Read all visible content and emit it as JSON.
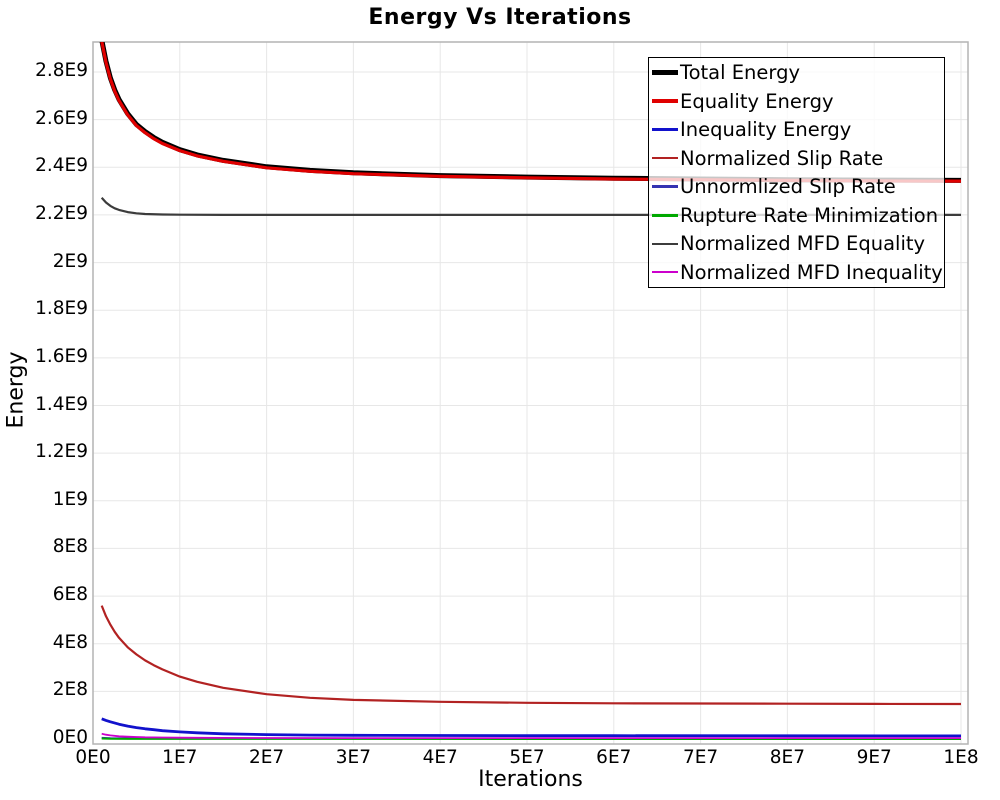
{
  "title": "Energy Vs Iterations",
  "axes": {
    "x": {
      "label": "Iterations",
      "min": 0,
      "max": 100000000.0,
      "ticks": [
        {
          "v": 0,
          "label": "0E0"
        },
        {
          "v": 10000000.0,
          "label": "1E7"
        },
        {
          "v": 20000000.0,
          "label": "2E7"
        },
        {
          "v": 30000000.0,
          "label": "3E7"
        },
        {
          "v": 40000000.0,
          "label": "4E7"
        },
        {
          "v": 50000000.0,
          "label": "5E7"
        },
        {
          "v": 60000000.0,
          "label": "6E7"
        },
        {
          "v": 70000000.0,
          "label": "7E7"
        },
        {
          "v": 80000000.0,
          "label": "8E7"
        },
        {
          "v": 90000000.0,
          "label": "9E7"
        },
        {
          "v": 100000000.0,
          "label": "1E8"
        }
      ]
    },
    "y": {
      "label": "Energy",
      "min": 0,
      "max": 2800000000.0,
      "ticks": [
        {
          "v": 0,
          "label": "0E0"
        },
        {
          "v": 200000000.0,
          "label": "2E8"
        },
        {
          "v": 400000000.0,
          "label": "4E8"
        },
        {
          "v": 600000000.0,
          "label": "6E8"
        },
        {
          "v": 800000000.0,
          "label": "8E8"
        },
        {
          "v": 1000000000.0,
          "label": "1E9"
        },
        {
          "v": 1200000000.0,
          "label": "1.2E9"
        },
        {
          "v": 1400000000.0,
          "label": "1.4E9"
        },
        {
          "v": 1600000000.0,
          "label": "1.6E9"
        },
        {
          "v": 1800000000.0,
          "label": "1.8E9"
        },
        {
          "v": 2000000000.0,
          "label": "2E9"
        },
        {
          "v": 2200000000.0,
          "label": "2.2E9"
        },
        {
          "v": 2400000000.0,
          "label": "2.4E9"
        },
        {
          "v": 2600000000.0,
          "label": "2.6E9"
        },
        {
          "v": 2800000000.0,
          "label": "2.8E9"
        }
      ]
    }
  },
  "legend": {
    "items": [
      {
        "label": "Total Energy",
        "color": "#000000",
        "sample_weight": 5
      },
      {
        "label": "Equality Energy",
        "color": "#e00000",
        "sample_weight": 4
      },
      {
        "label": "Inequality Energy",
        "color": "#1212cc",
        "sample_weight": 3.5
      },
      {
        "label": "Normalized Slip Rate",
        "color": "#b22222",
        "sample_weight": 2.5
      },
      {
        "label": "Unnormlized Slip Rate",
        "color": "#3434b2",
        "sample_weight": 2.5
      },
      {
        "label": "Rupture Rate Minimization",
        "color": "#00a800",
        "sample_weight": 2.5
      },
      {
        "label": "Normalized MFD Equality",
        "color": "#3c3c3c",
        "sample_weight": 2.2
      },
      {
        "label": "Normalized MFD Inequality",
        "color": "#cc00cc",
        "sample_weight": 2.2
      }
    ]
  },
  "chart_data": {
    "type": "line",
    "title": "Energy Vs Iterations",
    "xlabel": "Iterations",
    "ylabel": "Energy",
    "xlim": [
      0,
      100000000.0
    ],
    "ylim": [
      0,
      2800000000.0
    ],
    "grid": true,
    "legend_position": "top-right",
    "series": [
      {
        "name": "Total Energy",
        "color": "#000000",
        "width": 5,
        "x": [
          1000000.0,
          1500000.0,
          2000000.0,
          2500000.0,
          3000000.0,
          4000000.0,
          5000000.0,
          6000000.0,
          7000000.0,
          8000000.0,
          10000000.0,
          12000000.0,
          15000000.0,
          20000000.0,
          25000000.0,
          30000000.0,
          40000000.0,
          50000000.0,
          60000000.0,
          70000000.0,
          80000000.0,
          90000000.0,
          100000000.0
        ],
        "y": [
          2935000000.0,
          2845000000.0,
          2775000000.0,
          2725000000.0,
          2685000000.0,
          2625000000.0,
          2580000000.0,
          2550000000.0,
          2525000000.0,
          2505000000.0,
          2474000000.0,
          2452000000.0,
          2429000000.0,
          2402000000.0,
          2387000000.0,
          2377000000.0,
          2365000000.0,
          2359000000.0,
          2354000000.0,
          2351000000.0,
          2348000000.0,
          2346000000.0,
          2345000000.0
        ]
      },
      {
        "name": "Equality Energy",
        "color": "#e00000",
        "width": 3.2,
        "x": [
          1000000.0,
          1500000.0,
          2000000.0,
          2500000.0,
          3000000.0,
          4000000.0,
          5000000.0,
          6000000.0,
          7000000.0,
          8000000.0,
          10000000.0,
          12000000.0,
          15000000.0,
          20000000.0,
          25000000.0,
          30000000.0,
          40000000.0,
          50000000.0,
          60000000.0,
          70000000.0,
          80000000.0,
          90000000.0,
          100000000.0
        ],
        "y": [
          2930000000.0,
          2840000000.0,
          2770000000.0,
          2720000000.0,
          2680000000.0,
          2620000000.0,
          2575000000.0,
          2545000000.0,
          2520000000.0,
          2500000000.0,
          2470000000.0,
          2448000000.0,
          2425000000.0,
          2398000000.0,
          2383000000.0,
          2373000000.0,
          2362000000.0,
          2356000000.0,
          2351000000.0,
          2348000000.0,
          2345000000.0,
          2343000000.0,
          2342000000.0
        ]
      },
      {
        "name": "Inequality Energy",
        "color": "#1212cc",
        "width": 2.8,
        "x": [
          1000000.0,
          1500000.0,
          2000000.0,
          3000000.0,
          4000000.0,
          5000000.0,
          6000000.0,
          7000000.0,
          8000000.0,
          10000000.0,
          12000000.0,
          15000000.0,
          20000000.0,
          25000000.0,
          30000000.0,
          40000000.0,
          50000000.0,
          60000000.0,
          80000000.0,
          100000000.0
        ],
        "y": [
          85000000.0,
          78000000.0,
          72000000.0,
          62000000.0,
          54000000.0,
          48000000.0,
          43000000.0,
          39000000.0,
          35000000.0,
          30000000.0,
          26000000.0,
          22000000.0,
          18500000.0,
          16500000.0,
          15500000.0,
          14500000.0,
          14000000.0,
          13700000.0,
          13300000.0,
          13000000.0
        ]
      },
      {
        "name": "Normalized Slip Rate",
        "color": "#b22222",
        "width": 2.2,
        "x": [
          1000000.0,
          1500000.0,
          2000000.0,
          2500000.0,
          3000000.0,
          4000000.0,
          5000000.0,
          6000000.0,
          7000000.0,
          8000000.0,
          10000000.0,
          12000000.0,
          15000000.0,
          20000000.0,
          25000000.0,
          30000000.0,
          40000000.0,
          50000000.0,
          60000000.0,
          70000000.0,
          80000000.0,
          90000000.0,
          100000000.0
        ],
        "y": [
          560000000.0,
          515000000.0,
          480000000.0,
          450000000.0,
          425000000.0,
          385000000.0,
          355000000.0,
          330000000.0,
          310000000.0,
          292000000.0,
          262000000.0,
          240000000.0,
          215000000.0,
          188000000.0,
          173000000.0,
          164000000.0,
          156000000.0,
          152000000.0,
          150000000.0,
          149000000.0,
          148000000.0,
          147500000.0,
          147000000.0
        ]
      },
      {
        "name": "Unnormlized Slip Rate",
        "color": "#3434b2",
        "width": 1.8,
        "x": [
          1000000.0,
          2000000.0,
          5000000.0,
          10000000.0,
          20000000.0,
          50000000.0,
          100000000.0
        ],
        "y": [
          5000000.0,
          3500000.0,
          2500000.0,
          2000000.0,
          1800000.0,
          1600000.0,
          1500000.0
        ]
      },
      {
        "name": "Rupture Rate Minimization",
        "color": "#00a800",
        "width": 2,
        "x": [
          1000000.0,
          2000000.0,
          5000000.0,
          10000000.0,
          100000000.0
        ],
        "y": [
          2000000.0,
          1000000.0,
          500000.0,
          300000.0,
          200000.0
        ]
      },
      {
        "name": "Normalized MFD Equality",
        "color": "#3c3c3c",
        "width": 2.2,
        "x": [
          1000000.0,
          1500000.0,
          2000000.0,
          2500000.0,
          3000000.0,
          4000000.0,
          5000000.0,
          6000000.0,
          8000000.0,
          10000000.0,
          15000000.0,
          20000000.0,
          30000000.0,
          50000000.0,
          100000000.0
        ],
        "y": [
          2272000000.0,
          2252000000.0,
          2238000000.0,
          2228000000.0,
          2221000000.0,
          2212000000.0,
          2207000000.0,
          2204000000.0,
          2202000000.0,
          2201000000.0,
          2200000000.0,
          2200000000.0,
          2200000000.0,
          2200000000.0,
          2200000000.0
        ]
      },
      {
        "name": "Normalized MFD Inequality",
        "color": "#cc00cc",
        "width": 1.8,
        "x": [
          1000000.0,
          1500000.0,
          2000000.0,
          3000000.0,
          4000000.0,
          5000000.0,
          6000000.0,
          8000000.0,
          10000000.0,
          15000000.0,
          20000000.0,
          30000000.0,
          50000000.0,
          100000000.0
        ],
        "y": [
          22000000.0,
          18000000.0,
          15000000.0,
          11500000.0,
          9500000.0,
          8200000.0,
          7300000.0,
          6200000.0,
          5500000.0,
          4600000.0,
          4200000.0,
          3900000.0,
          3700000.0,
          3600000.0
        ]
      }
    ]
  },
  "style": {
    "grid_color": "#e7e7e7",
    "border_color": "#b4b4b4",
    "background": "#ffffff"
  }
}
